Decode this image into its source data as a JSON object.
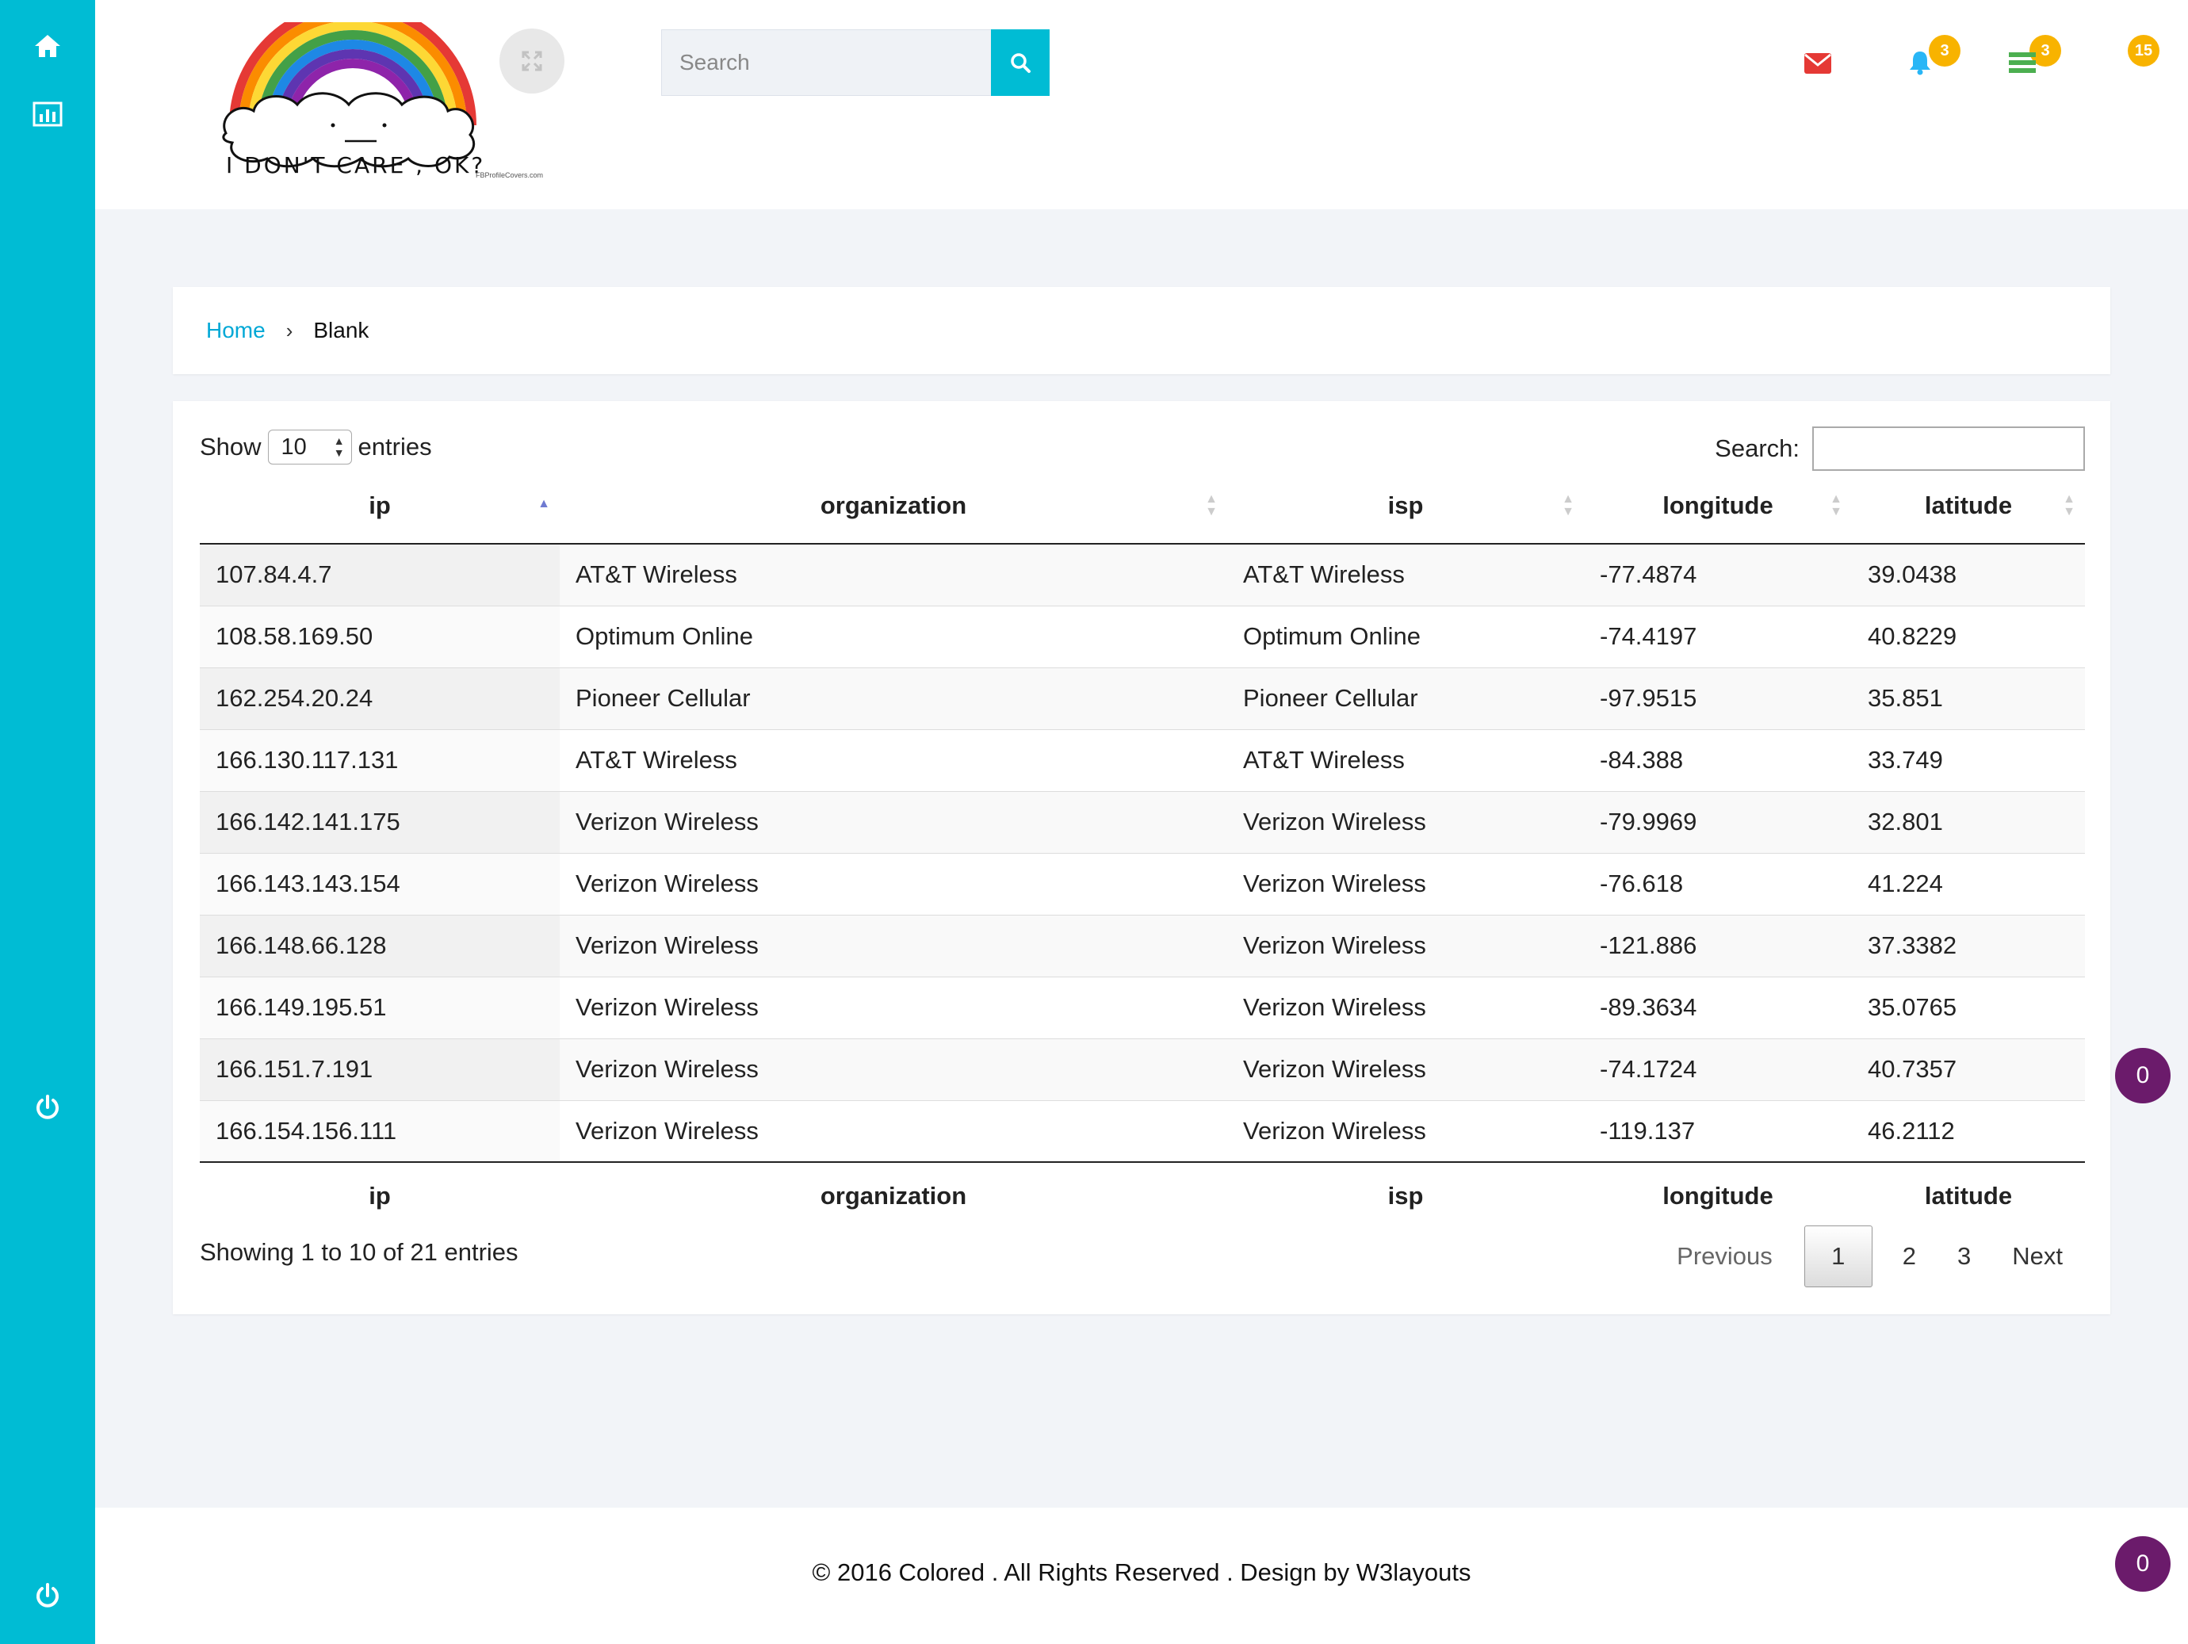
{
  "header": {
    "logo_caption": "I DON'T CARE , OK?",
    "logo_small_text": "FBProfileCovers.com",
    "search_placeholder": "Search",
    "mail_count": "3",
    "bell_count": "3",
    "tasks_count": "15"
  },
  "breadcrumb": {
    "home": "Home",
    "current": "Blank"
  },
  "table": {
    "show_label": "Show",
    "page_length": "10",
    "entries_label": "entries",
    "search_label": "Search:",
    "columns": [
      "ip",
      "organization",
      "isp",
      "longitude",
      "latitude"
    ],
    "rows": [
      [
        "107.84.4.7",
        "AT&T Wireless",
        "AT&T Wireless",
        "-77.4874",
        "39.0438"
      ],
      [
        "108.58.169.50",
        "Optimum Online",
        "Optimum Online",
        "-74.4197",
        "40.8229"
      ],
      [
        "162.254.20.24",
        "Pioneer Cellular",
        "Pioneer Cellular",
        "-97.9515",
        "35.851"
      ],
      [
        "166.130.117.131",
        "AT&T Wireless",
        "AT&T Wireless",
        "-84.388",
        "33.749"
      ],
      [
        "166.142.141.175",
        "Verizon Wireless",
        "Verizon Wireless",
        "-79.9969",
        "32.801"
      ],
      [
        "166.143.143.154",
        "Verizon Wireless",
        "Verizon Wireless",
        "-76.618",
        "41.224"
      ],
      [
        "166.148.66.128",
        "Verizon Wireless",
        "Verizon Wireless",
        "-121.886",
        "37.3382"
      ],
      [
        "166.149.195.51",
        "Verizon Wireless",
        "Verizon Wireless",
        "-89.3634",
        "35.0765"
      ],
      [
        "166.151.7.191",
        "Verizon Wireless",
        "Verizon Wireless",
        "-74.1724",
        "40.7357"
      ],
      [
        "166.154.156.111",
        "Verizon Wireless",
        "Verizon Wireless",
        "-119.137",
        "46.2112"
      ]
    ],
    "info": "Showing 1 to 10 of 21 entries",
    "pagination": {
      "previous": "Previous",
      "pages": [
        "1",
        "2",
        "3"
      ],
      "next": "Next"
    }
  },
  "footer": {
    "text": "© 2016 Colored . All Rights Reserved . Design by W3layouts"
  },
  "bubbles": {
    "top": "0",
    "bottom": "0"
  },
  "colors": {
    "accent": "#00bcd4",
    "badge": "#f8b300",
    "mail": "#e53935",
    "bell": "#29b6f6",
    "tasks": "#4caf50",
    "bubble": "#6b1b6b"
  }
}
